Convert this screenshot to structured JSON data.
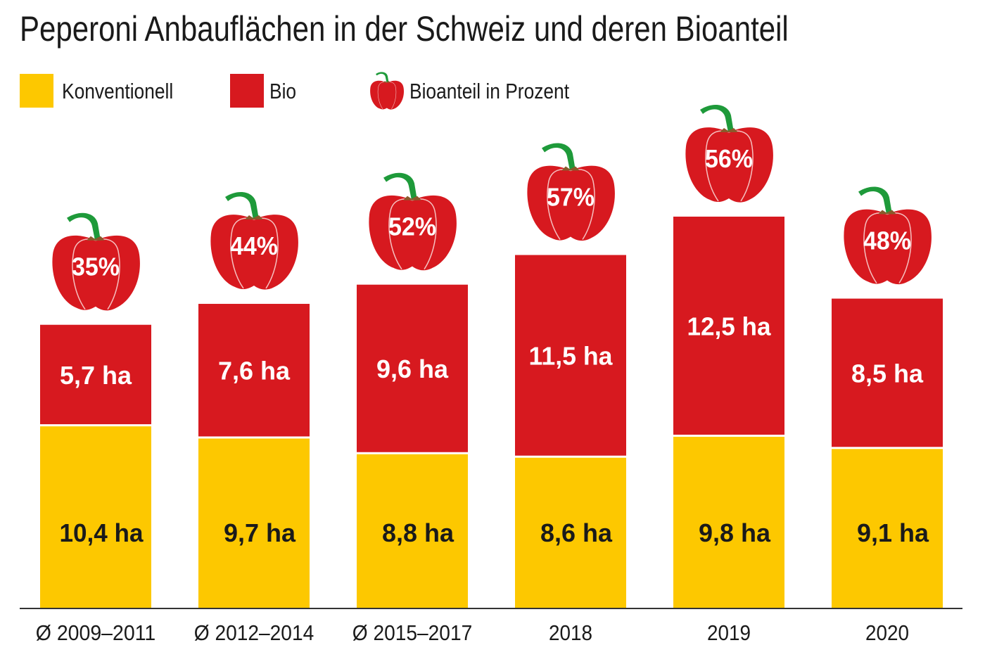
{
  "title": "Peperoni Anbauflächen in der Schweiz und deren Bioanteil",
  "legend": [
    {
      "label": "Konventionell",
      "color": "#FDC800",
      "icon": "square"
    },
    {
      "label": "Bio",
      "color": "#D7191F",
      "icon": "square"
    },
    {
      "label": "Bioanteil in Prozent",
      "icon": "pepper-icon"
    }
  ],
  "chart_data": {
    "type": "bar",
    "stacked": true,
    "title": "Peperoni Anbauflächen in der Schweiz und deren Bioanteil",
    "categories": [
      "Ø 2009–2011",
      "Ø 2012–2014",
      "Ø 2015–2017",
      "2018",
      "2019",
      "2020"
    ],
    "unit": "ha",
    "series": [
      {
        "name": "Konventionell",
        "color": "#FDC800",
        "values": [
          10.4,
          9.7,
          8.8,
          8.6,
          9.8,
          9.1
        ],
        "labels": [
          "10,4 ha",
          "9,7 ha",
          "8,8 ha",
          "8,6 ha",
          "9,8 ha",
          "9,1 ha"
        ]
      },
      {
        "name": "Bio",
        "color": "#D7191F",
        "values": [
          5.7,
          7.6,
          9.6,
          11.5,
          12.5,
          8.5
        ],
        "labels": [
          "5,7 ha",
          "7,6 ha",
          "9,6 ha",
          "11,5 ha",
          "12,5 ha",
          "8,5 ha"
        ]
      }
    ],
    "bio_share": {
      "name": "Bioanteil in Prozent",
      "values": [
        35,
        44,
        52,
        57,
        56,
        48
      ],
      "labels": [
        "35%",
        "44%",
        "52%",
        "57%",
        "56%",
        "48%"
      ]
    },
    "grid": false,
    "legend_position": "top-left"
  }
}
